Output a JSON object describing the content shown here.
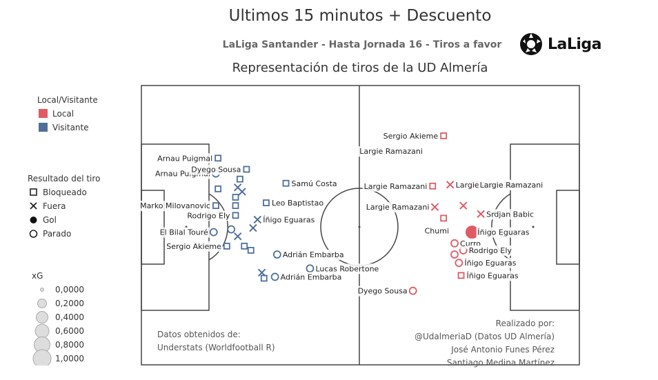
{
  "title": "Ultimos 15 minutos + Descuento",
  "subtitle": "LaLiga Santander - Hasta Jornada 16 - Tiros a favor",
  "subtitle2": "Representación de tiros de la UD Almería",
  "logo_text": "LaLiga",
  "colors": {
    "local": "#e05a64",
    "visitante": "#4e6f9a",
    "pitch_line": "#444444"
  },
  "legend": {
    "venue_title": "Local/Visitante",
    "venue_items": [
      {
        "label": "Local",
        "color": "#e05a64"
      },
      {
        "label": "Visitante",
        "color": "#4e6f9a"
      }
    ],
    "result_title": "Resultado del tiro",
    "result_items": [
      {
        "label": "Bloqueado",
        "shape": "square"
      },
      {
        "label": "Fuera",
        "shape": "cross"
      },
      {
        "label": "Gol",
        "shape": "dot"
      },
      {
        "label": "Parado",
        "shape": "circle"
      }
    ],
    "xg_title": "xG",
    "xg_items": [
      "0,0000",
      "0,2000",
      "0,4000",
      "0,6000",
      "0,8000",
      "1,0000"
    ]
  },
  "notes": {
    "source_lines": [
      "Datos obtenidos de:",
      "Understats (Worldfootball R)"
    ],
    "author_lines": [
      "Realizado por:",
      "@UdalmeriaD (Datos UD Almería)",
      "José Antonio Funes Pérez",
      "Santiago Medina Martínez"
    ]
  },
  "chart_data": {
    "type": "scatter",
    "title": "Ultimos 15 minutos + Descuento",
    "x_range": [
      0,
      100
    ],
    "y_range": [
      0,
      100
    ],
    "series": [
      {
        "name": "Visitante",
        "points": [
          {
            "x": 17.5,
            "y": 74.0,
            "result": "Bloqueado",
            "label": "Arnau Puigmal"
          },
          {
            "x": 17.0,
            "y": 68.5,
            "result": "Parado",
            "label": "Arnau Puigmal"
          },
          {
            "x": 17.5,
            "y": 63.0,
            "result": "Bloqueado",
            "label": ""
          },
          {
            "x": 24.0,
            "y": 70.0,
            "result": "Bloqueado",
            "label": "Dyego Sousa"
          },
          {
            "x": 22.5,
            "y": 66.5,
            "result": "Bloqueado",
            "label": ""
          },
          {
            "x": 22.0,
            "y": 63.5,
            "result": "Fuera",
            "label": ""
          },
          {
            "x": 23.0,
            "y": 62.0,
            "result": "Fuera",
            "label": ""
          },
          {
            "x": 21.5,
            "y": 60.0,
            "result": "Bloqueado",
            "label": ""
          },
          {
            "x": 21.5,
            "y": 57.0,
            "result": "Bloqueado",
            "label": ""
          },
          {
            "x": 17.0,
            "y": 57.0,
            "result": "Bloqueado",
            "label": "Marko Milovanovic"
          },
          {
            "x": 21.5,
            "y": 53.5,
            "result": "Bloqueado",
            "label": "Rodrigo Ely"
          },
          {
            "x": 33.0,
            "y": 65.0,
            "result": "Bloqueado",
            "label": "Samú Costa"
          },
          {
            "x": 28.5,
            "y": 58.0,
            "result": "Bloqueado",
            "label": "Leo Baptistao"
          },
          {
            "x": 16.5,
            "y": 47.5,
            "result": "Parado",
            "label": "El Bilal Touré"
          },
          {
            "x": 20.5,
            "y": 48.5,
            "result": "Parado",
            "label": ""
          },
          {
            "x": 19.5,
            "y": 42.5,
            "result": "Bloqueado",
            "label": "Sergio Akieme"
          },
          {
            "x": 22.0,
            "y": 46.0,
            "result": "Fuera",
            "label": ""
          },
          {
            "x": 23.5,
            "y": 42.5,
            "result": "Bloqueado",
            "label": ""
          },
          {
            "x": 25.0,
            "y": 41.0,
            "result": "Bloqueado",
            "label": ""
          },
          {
            "x": 25.5,
            "y": 49.0,
            "result": "Fuera",
            "label": ""
          },
          {
            "x": 26.5,
            "y": 52.0,
            "result": "Fuera",
            "label": "Íñigo Eguaras"
          },
          {
            "x": 31.0,
            "y": 39.5,
            "result": "Parado",
            "label": "Adrián Embarba"
          },
          {
            "x": 27.5,
            "y": 33.0,
            "result": "Fuera",
            "label": ""
          },
          {
            "x": 28.0,
            "y": 31.0,
            "result": "Bloqueado",
            "label": ""
          },
          {
            "x": 30.5,
            "y": 31.5,
            "result": "Parado",
            "label": "Adrián Embarba"
          },
          {
            "x": 38.5,
            "y": 34.5,
            "result": "Parado",
            "label": "Lucas Robertone"
          }
        ]
      },
      {
        "name": "Local",
        "points": [
          {
            "x": 69.0,
            "y": 82.0,
            "result": "Bloqueado",
            "label": "Sergio Akieme"
          },
          {
            "x": 70.5,
            "y": 64.5,
            "result": "Fuera",
            "label": "Largie Ramazani"
          },
          {
            "x": 66.5,
            "y": 64.0,
            "result": "Bloqueado",
            "label": "Largie Ramazani"
          },
          {
            "x": 67.0,
            "y": 56.5,
            "result": "Fuera",
            "label": "Largie Ramazani"
          },
          {
            "x": 69.0,
            "y": 52.5,
            "result": "Bloqueado",
            "label": ""
          },
          {
            "x": 76.0,
            "y": 64.5,
            "result": "Fuera",
            "label": "Largie Ramazani"
          },
          {
            "x": 73.5,
            "y": 57.0,
            "result": "Fuera",
            "label": ""
          },
          {
            "x": 77.5,
            "y": 54.0,
            "result": "Fuera",
            "label": "Srdjan Babic"
          },
          {
            "x": 75.5,
            "y": 47.5,
            "result": "Gol",
            "label": "Íñigo Eguaras"
          },
          {
            "x": 71.5,
            "y": 43.5,
            "result": "Parado",
            "label": "Curro"
          },
          {
            "x": 73.5,
            "y": 41.0,
            "result": "Parado",
            "label": "Rodrigo Ely"
          },
          {
            "x": 71.5,
            "y": 39.5,
            "result": "Parado",
            "label": ""
          },
          {
            "x": 72.5,
            "y": 36.5,
            "result": "Parado",
            "label": "Íñigo Eguaras"
          },
          {
            "x": 73.0,
            "y": 32.0,
            "result": "Bloqueado",
            "label": "Íñigo Eguaras"
          },
          {
            "x": 62.0,
            "y": 26.5,
            "result": "Parado",
            "label": "Dyego Sousa"
          }
        ],
        "extra_labels": [
          {
            "x": 65.5,
            "y": 76.5,
            "label": "Largie Ramazani"
          },
          {
            "x": 71.5,
            "y": 48.0,
            "label": "Chumi"
          }
        ]
      }
    ]
  }
}
